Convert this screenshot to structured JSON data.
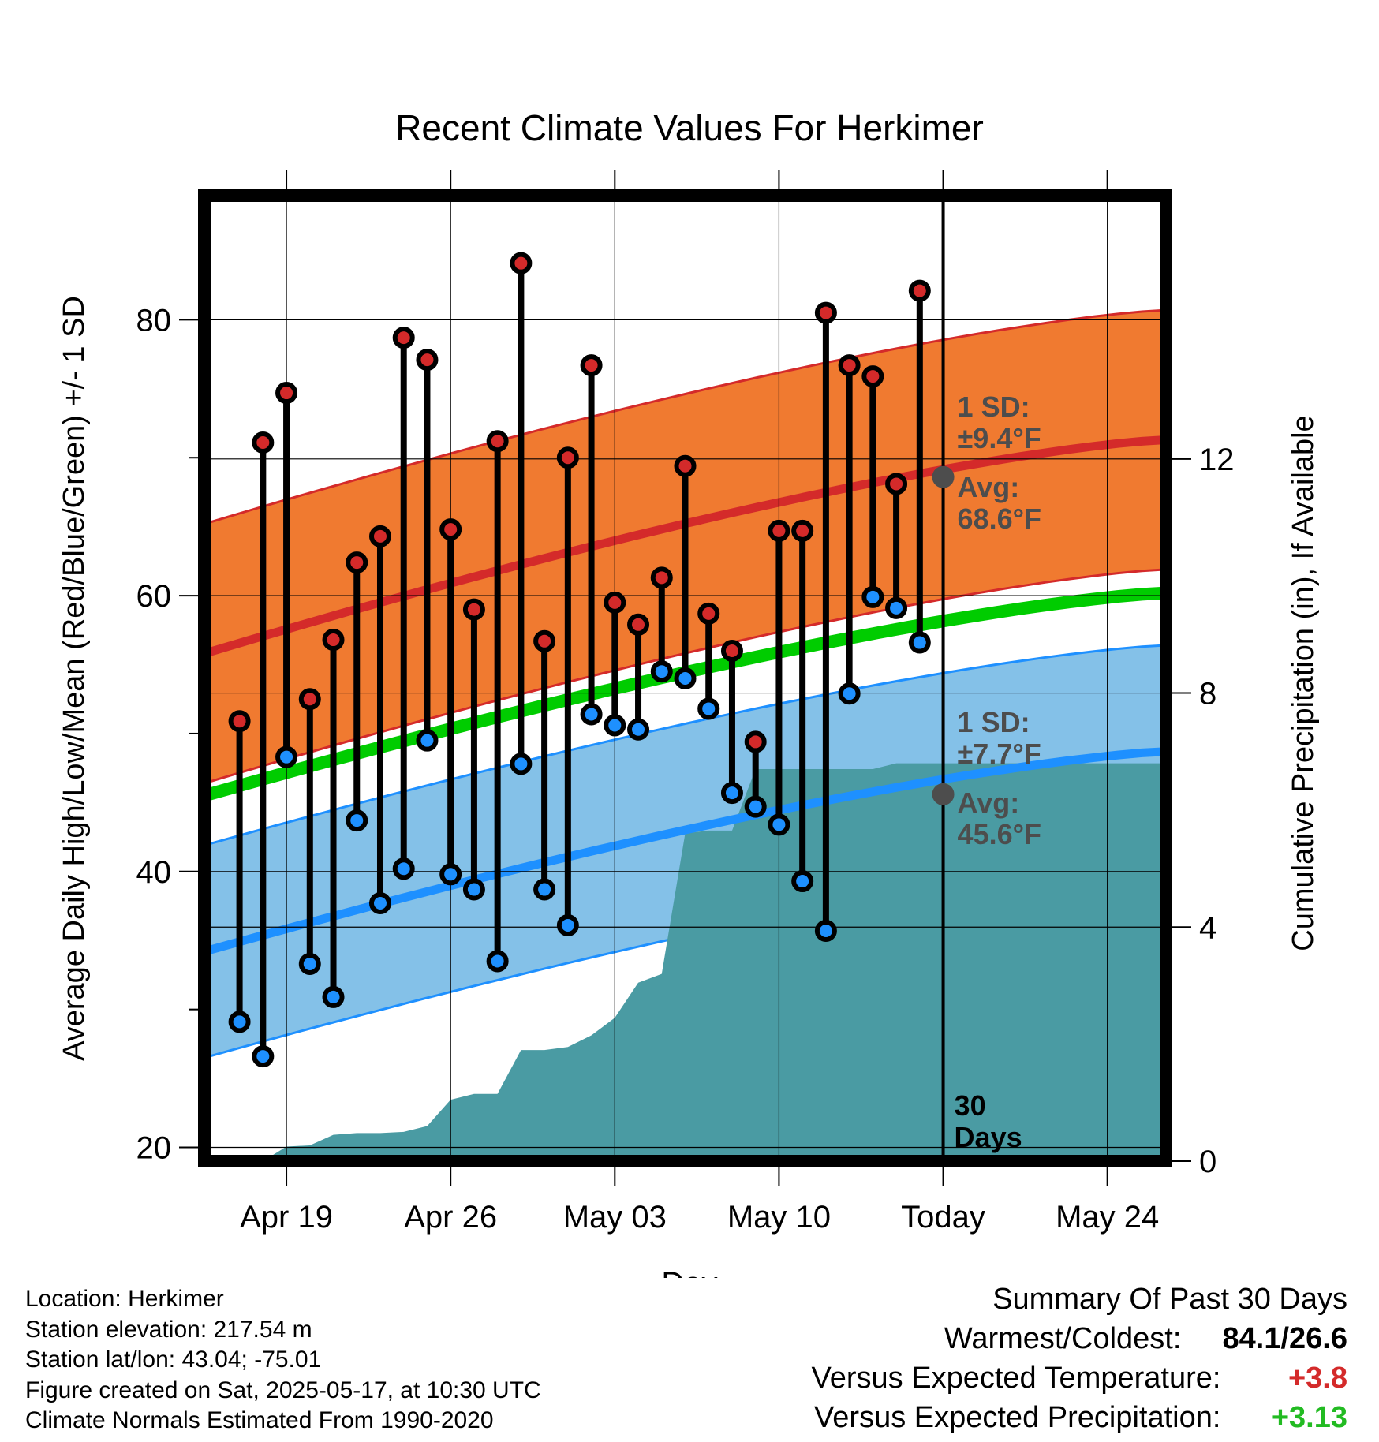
{
  "title": "Recent Climate Values For Herkimer",
  "colors": {
    "high_band": "#f07a30",
    "high_line": "#d42a2a",
    "low_band": "#84c1e8",
    "low_line": "#1e90ff",
    "mean_line": "#00cc00",
    "precip": "#4a9ba3",
    "avg_dot": "#4d4d4d",
    "annotation": "#4d4d4d",
    "positive_temp": "#d42a2a",
    "positive_precip": "#22bb22"
  },
  "chart_data": {
    "type": "line",
    "title": "Recent Climate Values For Herkimer",
    "xlabel": "Day",
    "ylabel": "Average Daily High/Low/Mean (Red/Blue/Green) +/- 1 SD",
    "y2label": "Cumulative Precipitation (in), If Available",
    "ylim": [
      19,
      89
    ],
    "y_ticks": [
      20,
      40,
      60,
      80
    ],
    "y_minor_ticks": [
      30,
      50,
      70
    ],
    "y2lim": [
      0,
      16.5
    ],
    "y2_ticks": [
      0,
      4,
      8,
      12
    ],
    "x_ticks": [
      "Apr 19",
      "Apr 26",
      "May 03",
      "May 10",
      "Today",
      "May 24"
    ],
    "x_tick_days": [
      "2025-04-19",
      "2025-04-26",
      "2025-05-03",
      "2025-05-10",
      "2025-05-17",
      "2025-05-24"
    ],
    "xlim": [
      "2025-04-15T12:00",
      "2025-05-26T12:00"
    ],
    "grid": true,
    "today": "2025-05-17",
    "today_label": [
      "30",
      "Days"
    ],
    "series": [
      {
        "name": "High",
        "x": [
          "2025-04-17",
          "2025-04-18",
          "2025-04-19",
          "2025-04-20",
          "2025-04-21",
          "2025-04-22",
          "2025-04-23",
          "2025-04-24",
          "2025-04-25",
          "2025-04-26",
          "2025-04-27",
          "2025-04-28",
          "2025-04-29",
          "2025-04-30",
          "2025-05-01",
          "2025-05-02",
          "2025-05-03",
          "2025-05-04",
          "2025-05-05",
          "2025-05-06",
          "2025-05-07",
          "2025-05-08",
          "2025-05-09",
          "2025-05-10",
          "2025-05-11",
          "2025-05-12",
          "2025-05-13",
          "2025-05-14",
          "2025-05-15",
          "2025-05-16"
        ],
        "values": [
          50.9,
          71.1,
          74.7,
          52.5,
          56.8,
          62.4,
          64.3,
          78.7,
          77.1,
          64.8,
          59.0,
          71.2,
          84.1,
          56.7,
          70.0,
          76.7,
          59.5,
          57.9,
          61.3,
          69.4,
          58.7,
          56.0,
          49.4,
          64.7,
          64.7,
          80.5,
          76.7,
          75.9,
          68.1,
          82.1
        ]
      },
      {
        "name": "Low",
        "x": [
          "2025-04-17",
          "2025-04-18",
          "2025-04-19",
          "2025-04-20",
          "2025-04-21",
          "2025-04-22",
          "2025-04-23",
          "2025-04-24",
          "2025-04-25",
          "2025-04-26",
          "2025-04-27",
          "2025-04-28",
          "2025-04-29",
          "2025-04-30",
          "2025-05-01",
          "2025-05-02",
          "2025-05-03",
          "2025-05-04",
          "2025-05-05",
          "2025-05-06",
          "2025-05-07",
          "2025-05-08",
          "2025-05-09",
          "2025-05-10",
          "2025-05-11",
          "2025-05-12",
          "2025-05-13",
          "2025-05-14",
          "2025-05-15",
          "2025-05-16"
        ],
        "values": [
          29.1,
          26.6,
          48.3,
          33.3,
          30.9,
          43.7,
          37.7,
          40.2,
          49.5,
          39.8,
          38.7,
          33.5,
          47.8,
          38.7,
          36.1,
          51.4,
          50.6,
          50.3,
          54.5,
          54.0,
          51.8,
          45.7,
          44.7,
          43.4,
          39.3,
          35.7,
          52.9,
          59.9,
          59.1,
          56.6
        ]
      },
      {
        "name": "Normal High",
        "x": [
          "2025-04-15T12:00",
          "2025-05-26T12:00"
        ],
        "values": [
          55.8,
          71.3
        ],
        "sd": 9.4
      },
      {
        "name": "Normal Low",
        "x": [
          "2025-04-15T12:00",
          "2025-05-26T12:00"
        ],
        "values": [
          34.2,
          48.7
        ],
        "sd": 7.7
      },
      {
        "name": "Normal Mean",
        "x": [
          "2025-04-15T12:00",
          "2025-05-26T12:00"
        ],
        "values": [
          45.5,
          60.2
        ]
      },
      {
        "name": "Cumulative Precipitation",
        "type": "area",
        "x": [
          "2025-04-18",
          "2025-04-19",
          "2025-04-20",
          "2025-04-21",
          "2025-04-22",
          "2025-04-23",
          "2025-04-24",
          "2025-04-25",
          "2025-04-26",
          "2025-04-27",
          "2025-04-28",
          "2025-04-29",
          "2025-04-30",
          "2025-05-01",
          "2025-05-02",
          "2025-05-03",
          "2025-05-04",
          "2025-05-05",
          "2025-05-06",
          "2025-05-07",
          "2025-05-08",
          "2025-05-09",
          "2025-05-10",
          "2025-05-11",
          "2025-05-12",
          "2025-05-13",
          "2025-05-14",
          "2025-05-15",
          "2025-05-16",
          "2025-05-17",
          "2025-05-26"
        ],
        "values": [
          0.0,
          0.25,
          0.27,
          0.45,
          0.48,
          0.48,
          0.5,
          0.6,
          1.05,
          1.15,
          1.15,
          1.9,
          1.9,
          1.95,
          2.15,
          2.45,
          3.05,
          3.2,
          5.6,
          5.65,
          5.65,
          6.7,
          6.7,
          6.7,
          6.7,
          6.7,
          6.7,
          6.8,
          6.8,
          6.8,
          6.8
        ]
      }
    ],
    "annotations": {
      "high_sd": [
        "1 SD:",
        "±9.4°F"
      ],
      "high_avg": [
        "Avg:",
        "68.6°F"
      ],
      "high_avg_value": 68.6,
      "low_sd": [
        "1 SD:",
        "±7.7°F"
      ],
      "low_avg": [
        "Avg:",
        "45.6°F"
      ],
      "low_avg_value": 45.6
    }
  },
  "station_info": {
    "location": "Location: Herkimer",
    "elevation": "Station elevation: 217.54 m",
    "latlon": "Station lat/lon: 43.04; -75.01",
    "created": "Figure created on Sat, 2025-05-17, at 10:30 UTC",
    "normals": "Climate Normals Estimated From 1990-2020"
  },
  "summary": {
    "heading": "Summary Of Past 30 Days",
    "warmest_coldest_label": "Warmest/Coldest:",
    "warmest_coldest_value": "84.1/26.6",
    "temp_label": "Versus Expected Temperature:",
    "temp_value": "+3.8",
    "precip_label": "Versus Expected Precipitation:",
    "precip_value": "+3.13"
  }
}
